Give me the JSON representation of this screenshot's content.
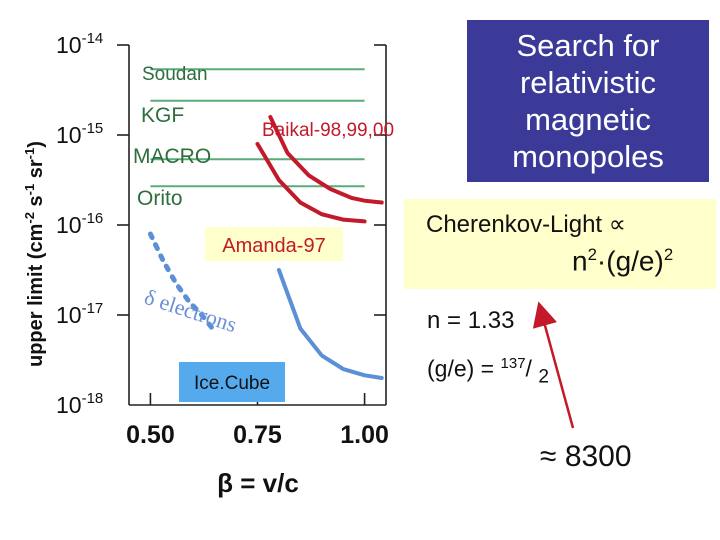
{
  "title": [
    "Search for",
    "relativistic",
    "magnetic",
    "monopoles"
  ],
  "cherenkov": {
    "title": "Cherenkov-Light",
    "prop_symbol": "∝",
    "formula": {
      "n": "n",
      "n_exp": "2",
      "dot": "·",
      "ratio": "(g/e)",
      "ratio_exp": "2"
    }
  },
  "refractive_index": "n = 1.33",
  "g_over_e": {
    "lhs": "(g/e) = ",
    "num": "137",
    "slash": "/ ",
    "den": "2"
  },
  "approx": {
    "symbol": "≈",
    "value": "8300"
  },
  "chart_data": {
    "type": "line",
    "title": "Search for relativistic magnetic monopoles",
    "ylabel": {
      "main": "upper limit (cm",
      "e1": "-2",
      "s": " s",
      "e2": "-1",
      "sr": " sr",
      "e3": "-1",
      "close": ")"
    },
    "xlabel": "β = v/c",
    "yscale": "log",
    "xlim": [
      0.45,
      1.05
    ],
    "ylim_exp": [
      -18,
      -14
    ],
    "x_ticks": [
      0.5,
      0.75,
      1.0
    ],
    "x_tick_labels": [
      "0.50",
      "0.75",
      "1.00"
    ],
    "y_ticks_exp": [
      -14,
      -15,
      -16,
      -17,
      -18
    ],
    "y_tick_base": "10",
    "series": [
      {
        "name": "Soudan",
        "style": "flat",
        "color": "#5aab7a",
        "log_y": -14.27,
        "x": [
          0.5,
          1.0
        ]
      },
      {
        "name": "KGF",
        "style": "flat",
        "color": "#5aab7a",
        "log_y": -14.62,
        "x": [
          0.5,
          1.0
        ]
      },
      {
        "name": "MACRO",
        "style": "flat",
        "color": "#5aab7a",
        "log_y": -15.27,
        "x": [
          0.5,
          1.0
        ]
      },
      {
        "name": "Orito",
        "style": "flat",
        "color": "#5aab7a",
        "log_y": -15.57,
        "x": [
          0.5,
          1.0
        ]
      },
      {
        "name": "Baikal-98,99,00",
        "style": "solid",
        "color": "#c21a2a",
        "x": [
          0.78,
          0.82,
          0.87,
          0.92,
          0.97,
          1.0,
          1.04
        ],
        "log_y": [
          -14.8,
          -15.2,
          -15.45,
          -15.6,
          -15.7,
          -15.73,
          -15.75
        ]
      },
      {
        "name": "Amanda-97",
        "style": "solid",
        "color": "#c21a2a",
        "x": [
          0.75,
          0.8,
          0.85,
          0.9,
          0.95,
          1.0
        ],
        "log_y": [
          -15.1,
          -15.5,
          -15.75,
          -15.88,
          -15.94,
          -15.96
        ]
      },
      {
        "name": "δ electrons",
        "style": "dotted",
        "color": "#5b8fd6",
        "x": [
          0.5,
          0.53,
          0.56,
          0.59,
          0.62,
          0.645
        ],
        "log_y": [
          -16.1,
          -16.4,
          -16.65,
          -16.85,
          -17.0,
          -17.15
        ]
      },
      {
        "name": "IceCube",
        "style": "solid",
        "color": "#5b8fd6",
        "x": [
          0.8,
          0.85,
          0.9,
          0.95,
          1.0,
          1.04
        ],
        "log_y": [
          -16.5,
          -17.15,
          -17.45,
          -17.6,
          -17.67,
          -17.7
        ]
      }
    ],
    "annotations": [
      "Soudan",
      "KGF",
      "MACRO",
      "Orito",
      "Baikal-98,99,00",
      "Amanda-97",
      "δ electrons",
      "Ice.Cube"
    ]
  }
}
